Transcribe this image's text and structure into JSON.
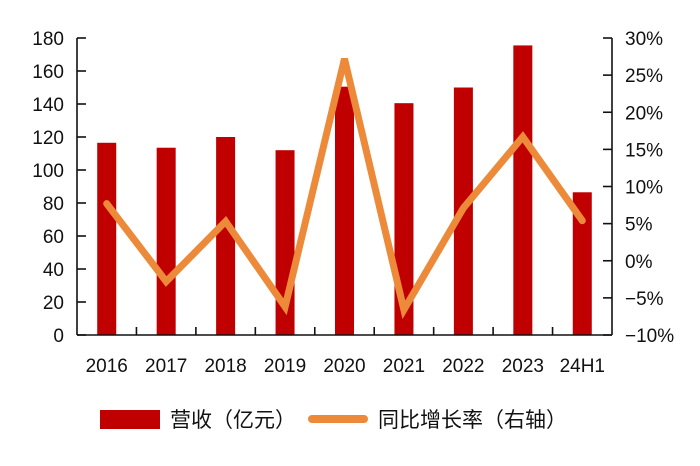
{
  "chart_data": {
    "type": "bar+line",
    "title": "",
    "categories": [
      "2016",
      "2017",
      "2018",
      "2019",
      "2020",
      "2021",
      "2022",
      "2023",
      "24H1"
    ],
    "series": [
      {
        "name": "营收（亿元）",
        "type": "bar",
        "axis": "left",
        "color": "#C00000",
        "values": [
          116.5,
          113.5,
          120,
          112,
          150.5,
          140.5,
          150,
          175.5,
          86.5
        ]
      },
      {
        "name": "同比增长率（右轴）",
        "type": "line",
        "axis": "right",
        "color": "#ED8A3A",
        "values": [
          7.7,
          -2.8,
          5.3,
          -6.2,
          27.2,
          -6.6,
          7.1,
          16.7,
          5.4
        ],
        "unit": "%"
      }
    ],
    "left_axis": {
      "min": 0,
      "max": 180,
      "step": 20,
      "ticks": [
        "0",
        "20",
        "40",
        "60",
        "80",
        "100",
        "120",
        "140",
        "160",
        "180"
      ]
    },
    "right_axis": {
      "min": -10,
      "max": 30,
      "step": 5,
      "ticks": [
        "-10%",
        "-5%",
        "0%",
        "5%",
        "10%",
        "15%",
        "20%",
        "25%",
        "30%"
      ]
    },
    "xlabel": "",
    "ylabel": "",
    "grid": false,
    "legend_position": "bottom"
  },
  "legend": {
    "bar_label": "营收（亿元）",
    "line_label": "同比增长率（右轴）"
  }
}
